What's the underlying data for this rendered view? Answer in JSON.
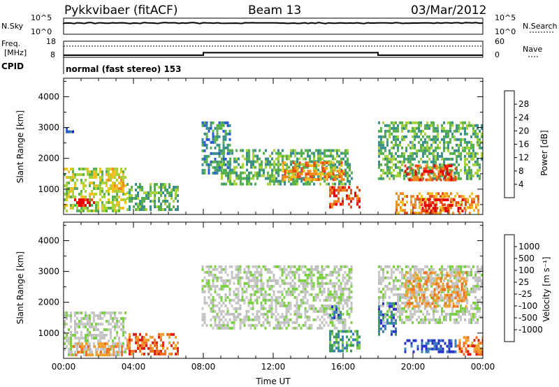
{
  "header": {
    "radar_title": "Pykkvibaer (fitACF)",
    "beam": "Beam 13",
    "date": "03/Mar/2012"
  },
  "aux_panels": {
    "nsky_label": "N.Sky",
    "nsky_ticks": [
      "10^5",
      "10^0"
    ],
    "nsearch_label": "N.Search",
    "nsearch_ticks": [
      "10^5",
      "10^0"
    ],
    "freq_label_line1": "Freq.",
    "freq_label_line2": "[MHz]",
    "freq_ticks": [
      "18",
      "8"
    ],
    "nave_label": "Nave",
    "nave_ticks": [
      "60",
      "0"
    ],
    "cpid_label": "CPID",
    "cpid_text": "normal (fast stereo) 153",
    "freq_steps": [
      {
        "start": "00:00",
        "end": "08:00",
        "mhz": 9.3
      },
      {
        "start": "08:00",
        "end": "18:00",
        "mhz": 10.9
      },
      {
        "start": "18:00",
        "end": "24:00",
        "mhz": 9.3
      }
    ]
  },
  "chart_data": [
    {
      "type": "heatmap",
      "panel": "power",
      "ylabel": "Slant Range [km]",
      "xlabel": "",
      "x_tick_labels": [
        "00:00",
        "04:00",
        "08:00",
        "12:00",
        "16:00",
        "20:00",
        "00:00"
      ],
      "xlim_hours": [
        0,
        24
      ],
      "y_tick_labels": [
        "1000",
        "2000",
        "3000",
        "4000"
      ],
      "ylim": [
        180,
        4600
      ],
      "colorbar": {
        "label": "Power [dB]",
        "ticks": [
          "4",
          "8",
          "12",
          "16",
          "20",
          "24",
          "28"
        ],
        "colors": [
          "#1a1ae6",
          "#2a5ad0",
          "#3a8f8a",
          "#56b050",
          "#a8d23c",
          "#f0c020",
          "#f08a20",
          "#e84a18",
          "#e60000"
        ]
      },
      "regions": [
        {
          "t0": 0.0,
          "t1": 3.6,
          "r0": 300,
          "r1": 1700,
          "level": 4
        },
        {
          "t0": 0.6,
          "t1": 1.8,
          "r0": 450,
          "r1": 700,
          "level": 8
        },
        {
          "t0": 2.4,
          "t1": 3.4,
          "r0": 900,
          "r1": 1700,
          "level": 5
        },
        {
          "t0": 3.6,
          "t1": 6.5,
          "r0": 300,
          "r1": 1200,
          "level": 3
        },
        {
          "t0": -0.1,
          "t1": 0.6,
          "r0": 2850,
          "r1": 3000,
          "level": 1
        },
        {
          "t0": 7.9,
          "t1": 9.5,
          "r0": 1500,
          "r1": 3200,
          "level": 2
        },
        {
          "t0": 9.0,
          "t1": 16.5,
          "r0": 1200,
          "r1": 2300,
          "level": 3
        },
        {
          "t0": 12.5,
          "t1": 16.0,
          "r0": 1300,
          "r1": 1900,
          "level": 6
        },
        {
          "t0": 15.2,
          "t1": 16.9,
          "r0": 400,
          "r1": 1100,
          "level": 7
        },
        {
          "t0": 18.0,
          "t1": 24.0,
          "r0": 1300,
          "r1": 3200,
          "level": 3
        },
        {
          "t0": 19.5,
          "t1": 22.5,
          "r0": 1300,
          "r1": 1800,
          "level": 7
        },
        {
          "t0": 19.0,
          "t1": 23.8,
          "r0": 250,
          "r1": 900,
          "level": 6
        },
        {
          "t0": 20.5,
          "t1": 23.0,
          "r0": 250,
          "r1": 700,
          "level": 8
        }
      ]
    },
    {
      "type": "heatmap",
      "panel": "velocity",
      "ylabel": "Slant Range [km]",
      "xlabel": "Time UT",
      "x_tick_labels": [
        "00:00",
        "04:00",
        "08:00",
        "12:00",
        "16:00",
        "20:00",
        "00:00"
      ],
      "xlim_hours": [
        0,
        24
      ],
      "y_tick_labels": [
        "1000",
        "2000",
        "3000",
        "4000"
      ],
      "ylim": [
        180,
        4600
      ],
      "colorbar": {
        "label": "Velocity [m s⁻¹]",
        "ticks": [
          "1000",
          "500",
          "100",
          "25",
          "-25",
          "-100",
          "-500",
          "-1000"
        ],
        "colors": [
          "#2a35c8",
          "#3a7fb8",
          "#3a9a60",
          "#7ad040",
          "#c8c8c8",
          "#c8c8c8",
          "#f0a030",
          "#f07020",
          "#e02010"
        ]
      },
      "ground_scatter_color": "#bebebe",
      "regions": [
        {
          "t0": 0.0,
          "t1": 3.6,
          "r0": 300,
          "r1": 1700,
          "level": 4
        },
        {
          "t0": 0.4,
          "t1": 3.4,
          "r0": 300,
          "r1": 700,
          "level": 6
        },
        {
          "t0": 3.6,
          "t1": 6.5,
          "r0": 300,
          "r1": 1000,
          "level": 7
        },
        {
          "t0": 7.9,
          "t1": 16.5,
          "r0": 1200,
          "r1": 3200,
          "level": 4
        },
        {
          "t0": 15.2,
          "t1": 16.9,
          "r0": 400,
          "r1": 1100,
          "level": 2
        },
        {
          "t0": 15.2,
          "t1": 16.0,
          "r0": 1500,
          "r1": 1900,
          "level": 1
        },
        {
          "t0": 18.0,
          "t1": 24.0,
          "r0": 1300,
          "r1": 3200,
          "level": 4
        },
        {
          "t0": 19.5,
          "t1": 23.0,
          "r0": 1900,
          "r1": 3000,
          "level": 6
        },
        {
          "t0": 19.5,
          "t1": 22.5,
          "r0": 400,
          "r1": 800,
          "level": 0
        },
        {
          "t0": 18.0,
          "t1": 19.0,
          "r0": 1000,
          "r1": 2000,
          "level": 1
        },
        {
          "t0": 22.5,
          "t1": 24.0,
          "r0": 300,
          "r1": 900,
          "level": 7
        }
      ]
    }
  ]
}
